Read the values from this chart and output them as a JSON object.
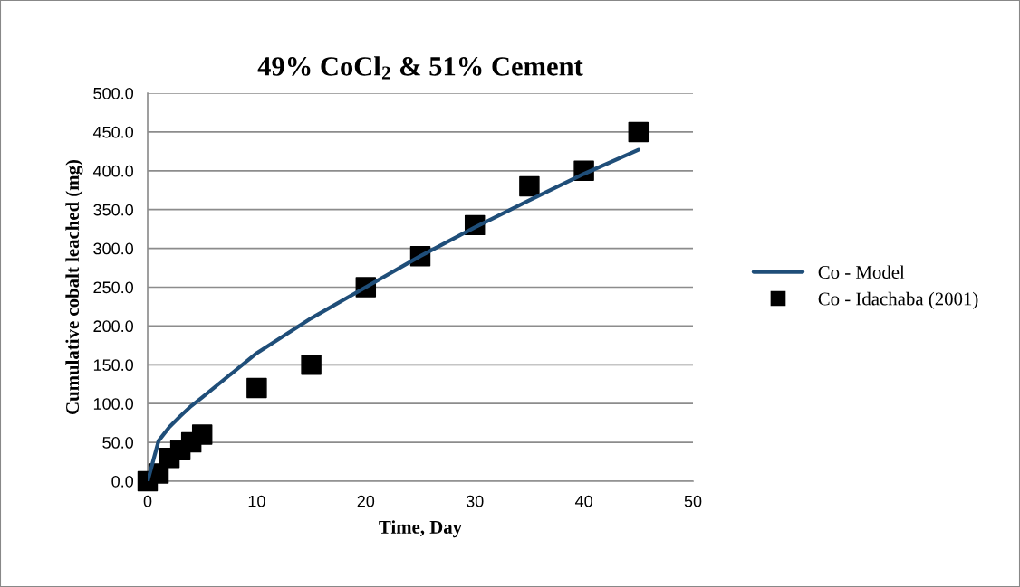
{
  "chart_data": {
    "type": "line",
    "title": "49% CoCl$_{2}$ & 51% Cement",
    "xlabel": "Time, Day",
    "ylabel": "Cumulative cobalt leached (mg)",
    "xlim": [
      0,
      50
    ],
    "xticks": [
      0,
      10,
      20,
      30,
      40,
      50
    ],
    "ylim": [
      0,
      500
    ],
    "yticks": [
      {
        "value": 0,
        "label": "0.0"
      },
      {
        "value": 50,
        "label": "50.0"
      },
      {
        "value": 100,
        "label": "100.0"
      },
      {
        "value": 150,
        "label": "150.0"
      },
      {
        "value": 200,
        "label": "200.0"
      },
      {
        "value": 250,
        "label": "250.0"
      },
      {
        "value": 300,
        "label": "300.0"
      },
      {
        "value": 350,
        "label": "350.0"
      },
      {
        "value": 400,
        "label": "400.0"
      },
      {
        "value": 450,
        "label": "450.0"
      },
      {
        "value": 500,
        "label": "500.0"
      }
    ],
    "grid": "y",
    "legend": "right",
    "series": [
      {
        "name": "Co - Model",
        "color": "#1f4e79",
        "marker": "none",
        "line_style": "solid",
        "x": [
          0,
          1,
          2,
          3,
          4,
          5,
          10,
          15,
          20,
          25,
          30,
          35,
          40,
          45
        ],
        "values": [
          0,
          52,
          70,
          84,
          97,
          108,
          165,
          210,
          250,
          290,
          327,
          362,
          396,
          427
        ]
      },
      {
        "name": "Co - Idachaba (2001)",
        "type": "scatter",
        "color": "#000000",
        "marker": "square",
        "x": [
          0,
          1,
          2,
          3,
          4,
          5,
          10,
          15,
          20,
          25,
          30,
          35,
          40,
          45
        ],
        "values": [
          0,
          10,
          30,
          40,
          50,
          60,
          120,
          150,
          250,
          290,
          330,
          380,
          400,
          450
        ]
      }
    ]
  }
}
